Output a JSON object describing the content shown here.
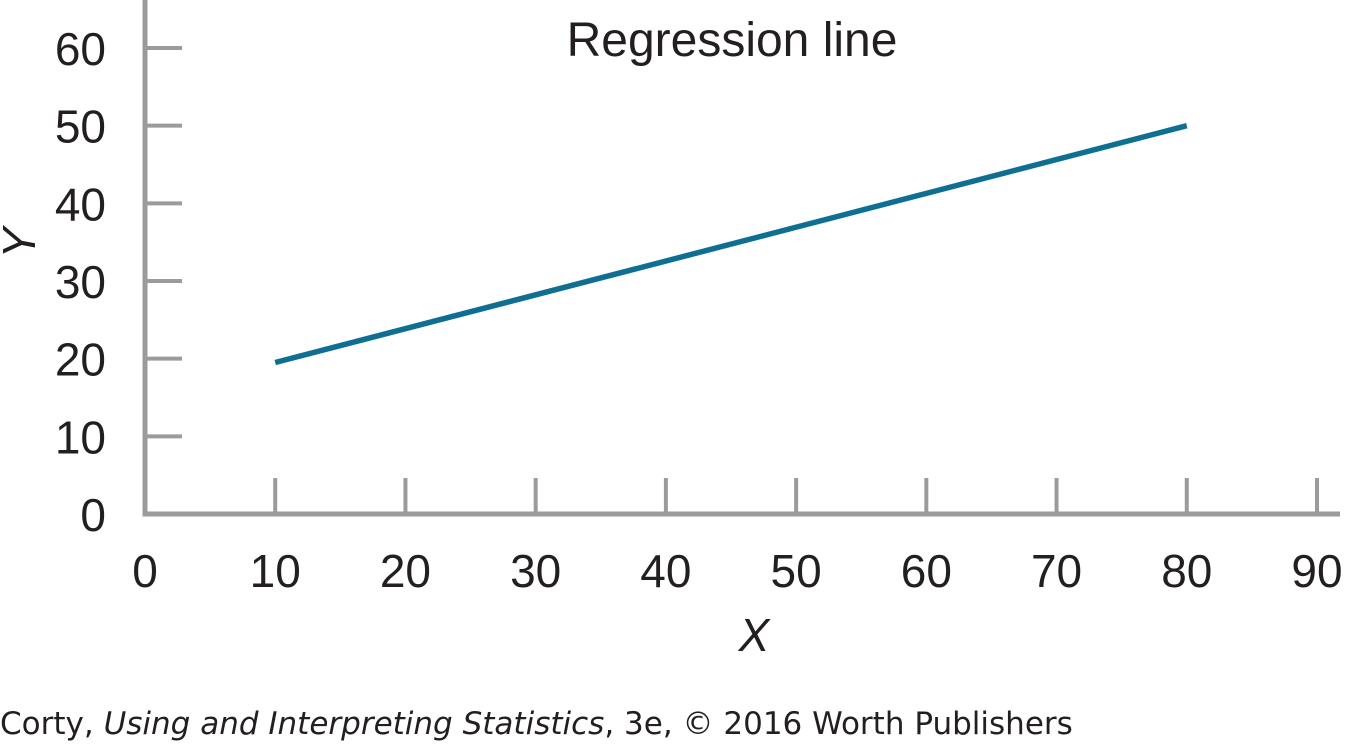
{
  "chart_data": {
    "type": "line",
    "title": "Regression line",
    "xlabel": "X",
    "ylabel": "Y",
    "xlim": [
      0,
      90
    ],
    "ylim": [
      0,
      60
    ],
    "x_ticks": [
      0,
      10,
      20,
      30,
      40,
      50,
      60,
      70,
      80,
      90
    ],
    "y_ticks": [
      0,
      10,
      20,
      30,
      40,
      50,
      60
    ],
    "series": [
      {
        "x": [
          10,
          80
        ],
        "y": [
          19.5,
          50
        ]
      }
    ],
    "grid": false,
    "colors": {
      "line": "#0f6f93",
      "axis": "#9b9b9b",
      "text": "#231f20"
    }
  },
  "credit": {
    "author": "Corty, ",
    "book_title": "Using and Interpreting Statistics",
    "rest": ", 3e, © 2016 Worth Publishers"
  }
}
